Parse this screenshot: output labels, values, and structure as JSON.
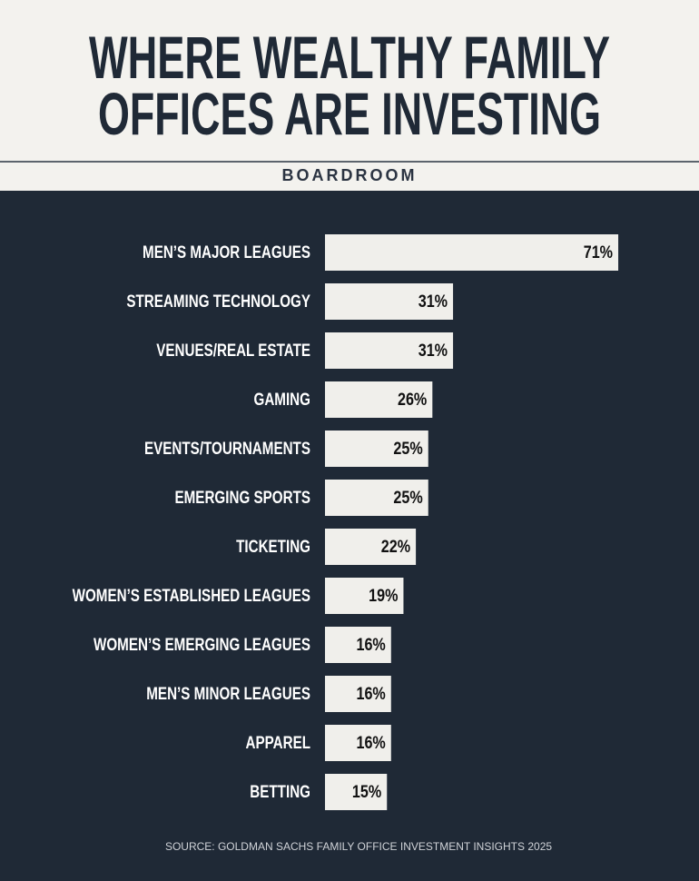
{
  "chart_data": {
    "type": "bar",
    "orientation": "horizontal",
    "title": [
      "WHERE WEALTHY FAMILY",
      "OFFICES ARE INVESTING"
    ],
    "subtitle": "BOARDROOM",
    "categories": [
      "MEN’S MAJOR LEAGUES",
      "STREAMING TECHNOLOGY",
      "VENUES/REAL ESTATE",
      "GAMING",
      "EVENTS/TOURNAMENTS",
      "EMERGING SPORTS",
      "TICKETING",
      "WOMEN’S ESTABLISHED LEAGUES",
      "WOMEN’S EMERGING LEAGUES",
      "MEN’S MINOR LEAGUES",
      "APPAREL",
      "BETTING"
    ],
    "values": [
      71,
      31,
      31,
      26,
      25,
      25,
      22,
      19,
      16,
      16,
      16,
      15
    ],
    "value_labels": [
      "71%",
      "31%",
      "31%",
      "26%",
      "25%",
      "25%",
      "22%",
      "19%",
      "16%",
      "16%",
      "16%",
      "15%"
    ],
    "color": "#f0efeb",
    "source": "SOURCE: GOLDMAN SACHS FAMILY OFFICE INVESTMENT INSIGHTS 2025"
  }
}
